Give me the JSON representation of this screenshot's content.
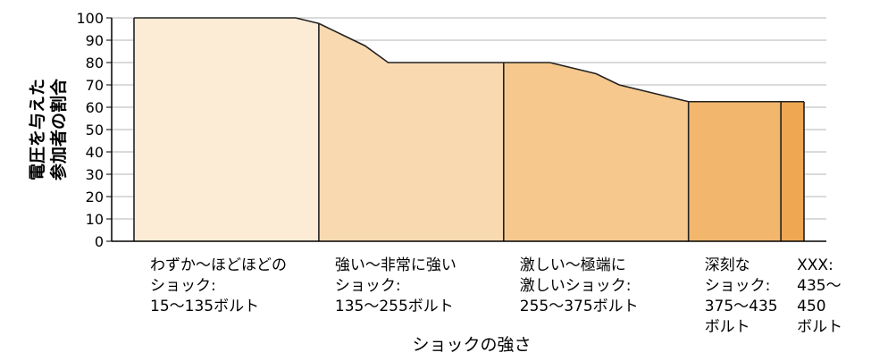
{
  "chart_data": {
    "type": "area",
    "title": "",
    "xlabel": "ショックの強さ",
    "ylabel_lines": [
      "電圧を与えた",
      "参加者の割合"
    ],
    "ylim": [
      0,
      100
    ],
    "yticks": [
      0,
      10,
      20,
      30,
      40,
      50,
      60,
      70,
      80,
      90,
      100
    ],
    "grid": true,
    "xlim": [
      15,
      450
    ],
    "categories": [
      {
        "label_lines": [
          "わずか〜ほどほどの",
          "ショック:",
          "15〜135ボルト"
        ],
        "range": [
          15,
          135
        ],
        "color": "#fcebd5"
      },
      {
        "label_lines": [
          "強い〜非常に強い",
          "ショック:",
          "135〜255ボルト"
        ],
        "range": [
          135,
          255
        ],
        "color": "#f9dab0"
      },
      {
        "label_lines": [
          "激しい〜極端に",
          "激しいショック:",
          "255〜375ボルト"
        ],
        "range": [
          255,
          375
        ],
        "color": "#f6c88e"
      },
      {
        "label_lines": [
          "深刻な",
          "ショック:",
          "375〜435",
          "ボルト"
        ],
        "range": [
          375,
          435
        ],
        "color": "#f2b66d"
      },
      {
        "label_lines": [
          "XXX:",
          "435〜",
          "450",
          "ボルト"
        ],
        "range": [
          435,
          450
        ],
        "color": "#efa752"
      }
    ],
    "series": [
      {
        "x": [
          15,
          30,
          45,
          60,
          75,
          90,
          105,
          120,
          135,
          150,
          165,
          180,
          195,
          210,
          225,
          240,
          255,
          270,
          285,
          300,
          315,
          330,
          345,
          360,
          375,
          390,
          405,
          420,
          435,
          450
        ],
        "values": [
          100,
          100,
          100,
          100,
          100,
          100,
          100,
          100,
          97.5,
          92.5,
          87.5,
          80,
          80,
          80,
          80,
          80,
          80,
          80,
          80,
          77.5,
          75,
          70,
          67.5,
          65,
          62.5,
          62.5,
          62.5,
          62.5,
          62.5,
          62.5
        ]
      }
    ]
  }
}
